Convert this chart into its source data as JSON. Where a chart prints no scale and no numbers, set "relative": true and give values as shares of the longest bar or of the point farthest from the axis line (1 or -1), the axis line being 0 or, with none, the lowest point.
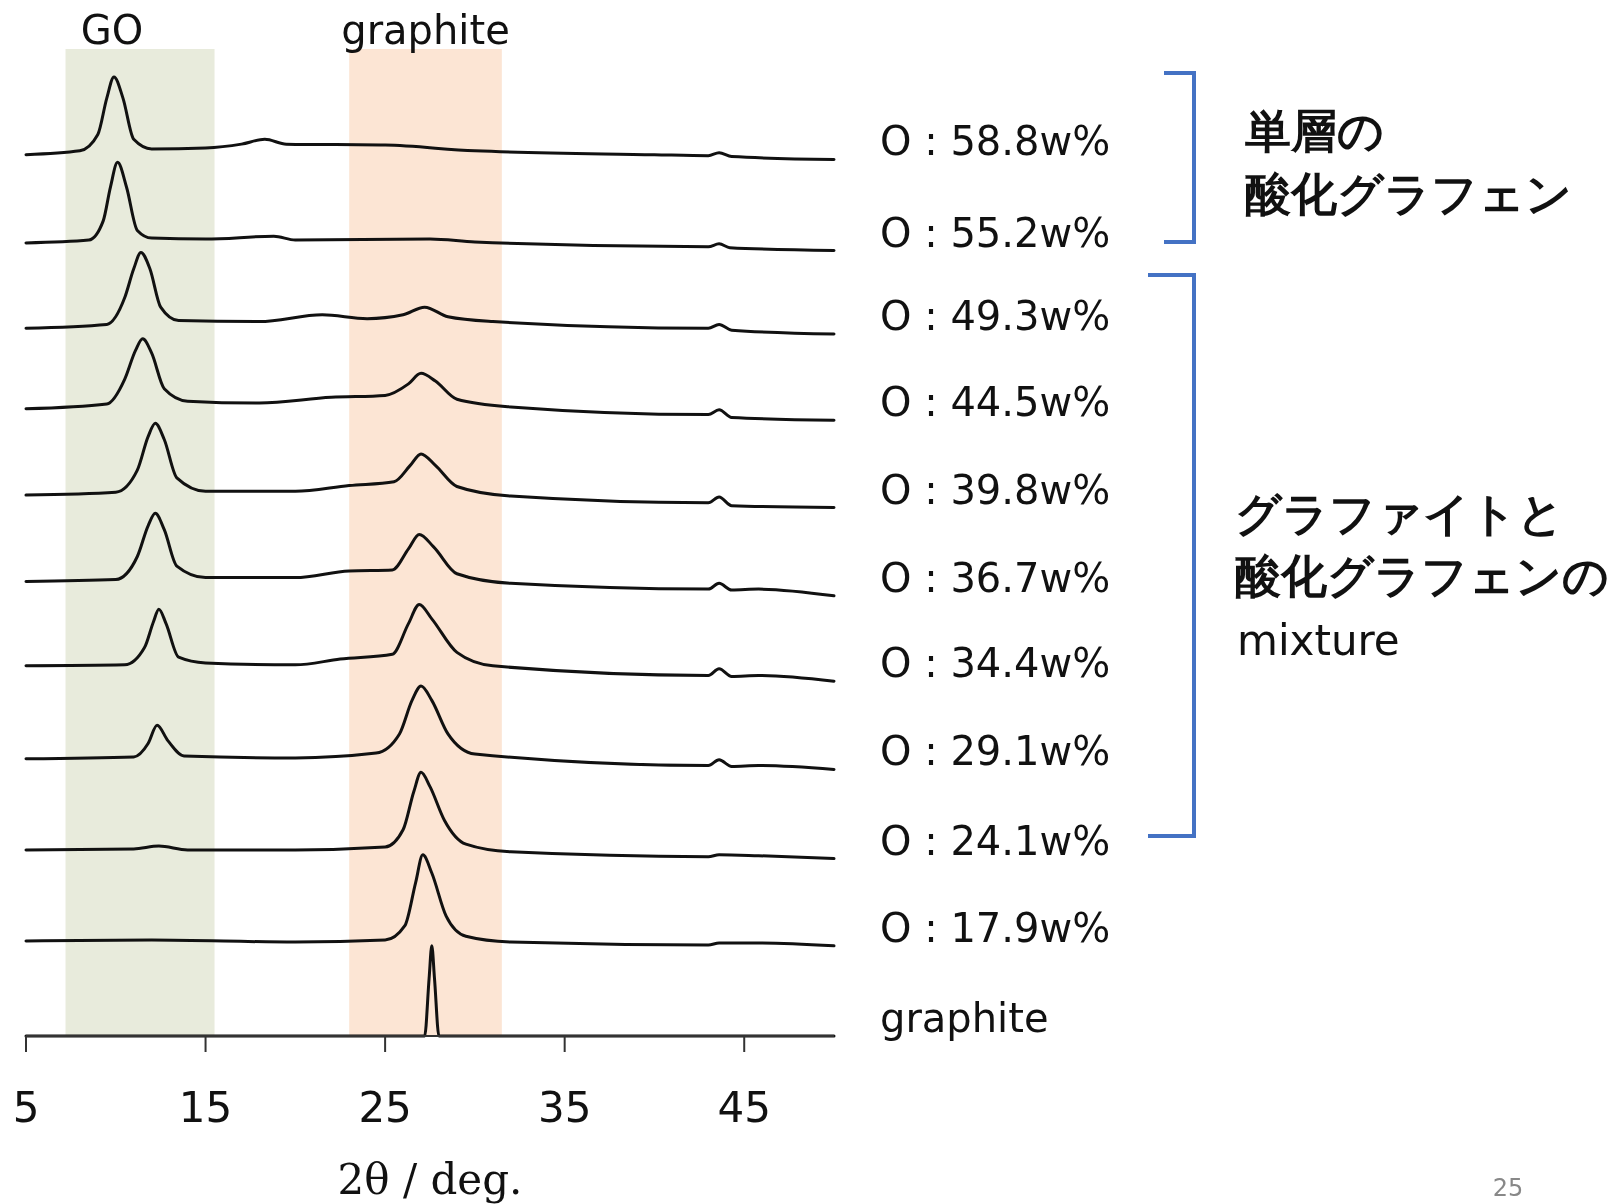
{
  "chart_data": {
    "type": "line",
    "relative": true,
    "xlabel": "2θ / deg.",
    "xlim": [
      5,
      50
    ],
    "xticks": [
      5,
      15,
      25,
      35,
      45
    ],
    "bands": [
      {
        "axis": "x",
        "from": 7.2,
        "to": 15.5,
        "label": "GO",
        "color": "#e8ebdc"
      },
      {
        "axis": "x",
        "from": 23,
        "to": 31.5,
        "label": "graphite",
        "color": "#fce5d4"
      }
    ],
    "annotations": [
      "単層の",
      "酸化グラフェン",
      "グラファイトと",
      "酸化グラフェンの",
      "mixture",
      "25"
    ],
    "series": [
      {
        "name": "O : 58.8w%",
        "color": "#111111",
        "x": [
          5,
          8,
          9,
          9.5,
          9.9,
          10.4,
          11,
          12,
          15,
          17,
          18.3,
          19.5,
          25,
          30,
          40,
          43,
          43.6,
          44.3,
          50
        ],
        "values": [
          0.919,
          0.923,
          0.94,
          0.978,
          1.0,
          0.978,
          0.935,
          0.925,
          0.926,
          0.93,
          0.935,
          0.93,
          0.929,
          0.923,
          0.919,
          0.918,
          0.921,
          0.917,
          0.914
        ]
      },
      {
        "name": "O : 55.2w%",
        "color": "#111111",
        "x": [
          5,
          8.5,
          9.3,
          9.7,
          10.1,
          10.6,
          11.2,
          12,
          15,
          18.8,
          20,
          27.5,
          30,
          43,
          43.6,
          44.2,
          50
        ],
        "values": [
          0.827,
          0.83,
          0.85,
          0.885,
          0.911,
          0.885,
          0.84,
          0.832,
          0.831,
          0.834,
          0.83,
          0.831,
          0.828,
          0.823,
          0.826,
          0.822,
          0.819
        ]
      },
      {
        "name": "O : 49.3w%",
        "color": "#111111",
        "x": [
          5,
          9.5,
          10.5,
          11,
          11.4,
          11.9,
          12.5,
          13.5,
          18,
          21.5,
          24,
          26,
          27.2,
          28.5,
          31,
          43,
          43.6,
          44.3,
          50
        ],
        "values": [
          0.738,
          0.742,
          0.77,
          0.8,
          0.817,
          0.8,
          0.76,
          0.746,
          0.745,
          0.752,
          0.748,
          0.752,
          0.76,
          0.75,
          0.745,
          0.738,
          0.742,
          0.736,
          0.732
        ]
      },
      {
        "name": "O : 44.5w%",
        "color": "#111111",
        "x": [
          5,
          9.5,
          10.5,
          11.1,
          11.5,
          12,
          12.7,
          14,
          18,
          22,
          25,
          26.3,
          27,
          27.8,
          29,
          32,
          43,
          43.6,
          44.3,
          50
        ],
        "values": [
          0.654,
          0.659,
          0.685,
          0.715,
          0.727,
          0.712,
          0.675,
          0.662,
          0.66,
          0.666,
          0.668,
          0.68,
          0.691,
          0.683,
          0.664,
          0.656,
          0.648,
          0.653,
          0.645,
          0.642
        ]
      },
      {
        "name": "O : 39.8w%",
        "color": "#111111",
        "x": [
          5,
          10,
          11.2,
          11.8,
          12.2,
          12.7,
          13.4,
          15,
          20,
          23,
          25.5,
          26.4,
          27,
          27.8,
          29,
          32,
          43,
          43.6,
          44.3,
          50
        ],
        "values": [
          0.564,
          0.567,
          0.59,
          0.625,
          0.639,
          0.622,
          0.582,
          0.568,
          0.568,
          0.574,
          0.578,
          0.595,
          0.607,
          0.595,
          0.573,
          0.563,
          0.556,
          0.562,
          0.553,
          0.551
        ]
      },
      {
        "name": "O : 36.7w%",
        "color": "#111111",
        "x": [
          5,
          10,
          11.2,
          11.8,
          12.2,
          12.7,
          13.4,
          15,
          20,
          23,
          25.4,
          26.3,
          26.9,
          27.7,
          29,
          32,
          43,
          43.6,
          44.3,
          45.8,
          50
        ],
        "values": [
          0.474,
          0.476,
          0.5,
          0.532,
          0.545,
          0.528,
          0.49,
          0.478,
          0.478,
          0.485,
          0.486,
          0.508,
          0.523,
          0.51,
          0.482,
          0.472,
          0.466,
          0.472,
          0.465,
          0.466,
          0.459
        ]
      },
      {
        "name": "O : 34.4w%",
        "color": "#111111",
        "x": [
          5,
          10.5,
          11.6,
          12.1,
          12.4,
          12.8,
          13.5,
          15,
          20,
          22.5,
          25.4,
          26.3,
          26.9,
          27.6,
          29,
          31,
          43,
          43.6,
          44.3,
          45.8,
          50
        ],
        "values": [
          0.386,
          0.387,
          0.405,
          0.432,
          0.445,
          0.43,
          0.395,
          0.389,
          0.387,
          0.393,
          0.398,
          0.43,
          0.45,
          0.435,
          0.4,
          0.386,
          0.376,
          0.383,
          0.375,
          0.376,
          0.37
        ]
      },
      {
        "name": "O : 29.1w%",
        "color": "#111111",
        "x": [
          5,
          11,
          11.8,
          12.3,
          12.9,
          13.8,
          20,
          24.5,
          25.8,
          26.5,
          27,
          27.6,
          28.5,
          30,
          43,
          43.6,
          44.3,
          45.8,
          50
        ],
        "values": [
          0.289,
          0.291,
          0.305,
          0.324,
          0.308,
          0.292,
          0.29,
          0.295,
          0.315,
          0.35,
          0.365,
          0.35,
          0.315,
          0.294,
          0.282,
          0.288,
          0.281,
          0.282,
          0.278
        ]
      },
      {
        "name": "O : 24.1w%",
        "color": "#111111",
        "x": [
          5,
          11,
          12.4,
          14,
          20,
          25,
          26,
          26.6,
          27,
          27.5,
          28.3,
          29.5,
          32,
          43,
          43.6,
          45.8,
          50
        ],
        "values": [
          0.194,
          0.195,
          0.198,
          0.194,
          0.194,
          0.197,
          0.215,
          0.255,
          0.275,
          0.26,
          0.225,
          0.2,
          0.192,
          0.187,
          0.189,
          0.188,
          0.185
        ]
      },
      {
        "name": "O : 17.9w%",
        "color": "#111111",
        "x": [
          5,
          12,
          20,
          25,
          26.1,
          26.7,
          27.1,
          27.6,
          28.4,
          29.5,
          32,
          43,
          43.6,
          45.8,
          50
        ],
        "values": [
          0.099,
          0.1,
          0.098,
          0.1,
          0.115,
          0.16,
          0.189,
          0.17,
          0.125,
          0.104,
          0.098,
          0.095,
          0.097,
          0.097,
          0.094
        ]
      },
      {
        "name": "graphite",
        "color": "#111111",
        "x": [
          5,
          27.2,
          27.45,
          27.6,
          27.75,
          28,
          50
        ],
        "values": [
          0,
          0,
          0.06,
          0.094,
          0.06,
          0,
          0
        ]
      }
    ]
  }
}
